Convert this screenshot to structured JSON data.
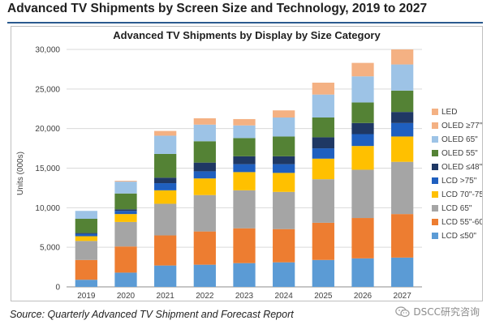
{
  "page": {
    "title": "Advanced TV Shipments by Screen Size and Technology, 2019 to 2027",
    "source": "Source:  Quarterly Advanced TV Shipment and Forecast Report",
    "watermark": "DSCC研究咨询",
    "watermark_icon": "wechat-icon"
  },
  "chart_data": {
    "type": "bar",
    "stacked": true,
    "title": "Advanced TV Shipments by Display by Size Category",
    "xlabel": "",
    "ylabel": "Units (000s)",
    "ylim": [
      0,
      30000
    ],
    "yticks": [
      0,
      5000,
      10000,
      15000,
      20000,
      25000,
      30000
    ],
    "ytick_labels": [
      "0",
      "5,000",
      "10,000",
      "15,000",
      "20,000",
      "25,000",
      "30,000"
    ],
    "grid": true,
    "legend_position": "right",
    "categories": [
      "2019",
      "2020",
      "2021",
      "2022",
      "2023",
      "2024",
      "2025",
      "2026",
      "2027"
    ],
    "series": [
      {
        "name": "LCD  ≤50\"",
        "color": "#5b9bd5",
        "values": [
          900,
          1800,
          2700,
          2800,
          3000,
          3100,
          3400,
          3600,
          3700
        ]
      },
      {
        "name": "LCD 55\"-60\"",
        "color": "#ed7d31",
        "values": [
          2500,
          3300,
          3800,
          4200,
          4400,
          4200,
          4700,
          5100,
          5500
        ]
      },
      {
        "name": "LCD 65\"",
        "color": "#a5a5a5",
        "values": [
          2400,
          3100,
          4000,
          4600,
          4800,
          4700,
          5500,
          6100,
          6600
        ]
      },
      {
        "name": "LCD 70\"-75\"",
        "color": "#ffc000",
        "values": [
          600,
          1000,
          1700,
          2100,
          2300,
          2400,
          2600,
          3000,
          3200
        ]
      },
      {
        "name": "LCD >75\"",
        "color": "#1f5fbf",
        "values": [
          300,
          400,
          900,
          900,
          1000,
          1100,
          1300,
          1500,
          1700
        ]
      },
      {
        "name": "OLED  ≤48\"",
        "color": "#1f3864",
        "values": [
          100,
          200,
          700,
          1100,
          1000,
          1000,
          1400,
          1400,
          1400
        ]
      },
      {
        "name": "OLED 55\"",
        "color": "#548235",
        "values": [
          1800,
          2000,
          3000,
          2700,
          2300,
          2500,
          2500,
          2600,
          2700
        ]
      },
      {
        "name": "OLED 65\"",
        "color": "#9dc3e6",
        "values": [
          1000,
          1500,
          2300,
          2100,
          1600,
          2400,
          2900,
          3300,
          3300
        ]
      },
      {
        "name": "OLED ≥77\"",
        "color": "#f4b183",
        "values": [
          0,
          100,
          600,
          800,
          800,
          900,
          1500,
          1700,
          1900
        ]
      },
      {
        "name": "LED",
        "color": "#f4b183",
        "values": [
          0,
          0,
          0,
          0,
          0,
          0,
          0,
          0,
          0
        ]
      }
    ]
  }
}
